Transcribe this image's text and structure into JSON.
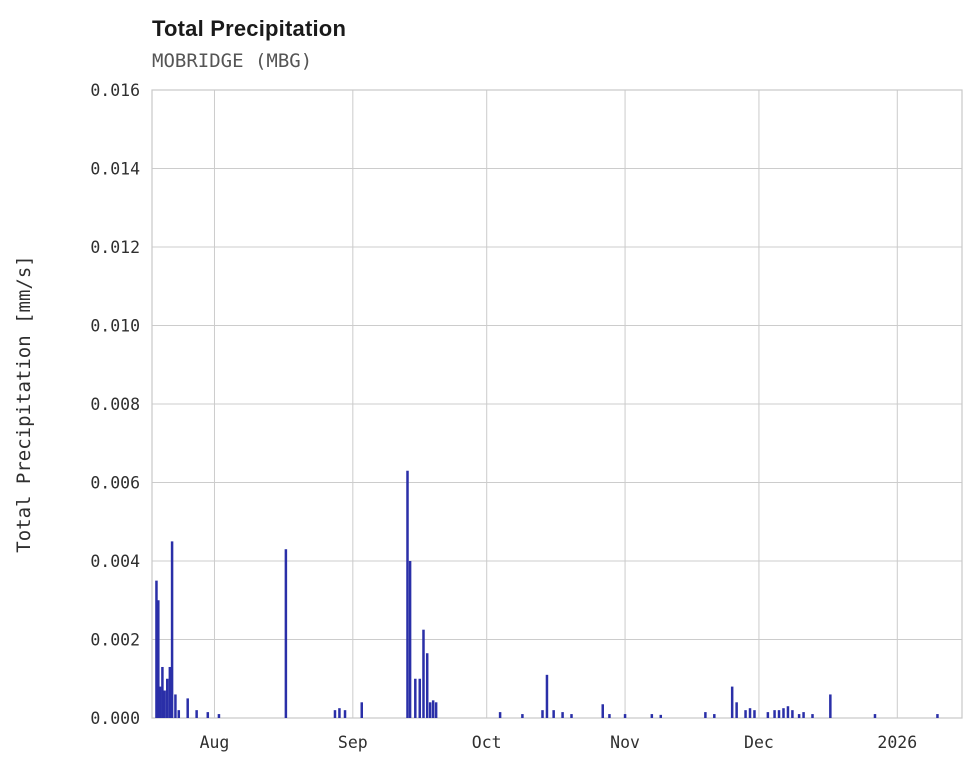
{
  "chart_data": {
    "type": "bar",
    "title": "Total Precipitation",
    "subtitle": "MOBRIDGE (MBG)",
    "ylabel": "Total Precipitation [mm/s]",
    "xlabel": "",
    "ylim": [
      0,
      0.016
    ],
    "ytick_step": 0.002,
    "ytick_labels": [
      "0.000",
      "0.002",
      "0.004",
      "0.006",
      "0.008",
      "0.010",
      "0.012",
      "0.014",
      "0.016"
    ],
    "x_start": "2025-07-18T00:00",
    "x_end": "2026-01-15T12:00",
    "xticks": [
      {
        "date": "2025-08-01T00:00",
        "label": "Aug"
      },
      {
        "date": "2025-09-01T00:00",
        "label": "Sep"
      },
      {
        "date": "2025-10-01T00:00",
        "label": "Oct"
      },
      {
        "date": "2025-11-01T00:00",
        "label": "Nov"
      },
      {
        "date": "2025-12-01T00:00",
        "label": "Dec"
      },
      {
        "date": "2026-01-01T00:00",
        "label": "2026"
      }
    ],
    "grid": true,
    "legend": false,
    "bar_color": "#2a2fa8",
    "grid_color": "#cccccc",
    "spine_color": "#c8c8c8",
    "tick_text_color": "#2f2f2f",
    "points": [
      {
        "date": "2025-07-19T00:00",
        "value": 0.0035
      },
      {
        "date": "2025-07-19T10:00",
        "value": 0.003
      },
      {
        "date": "2025-07-19T20:00",
        "value": 0.0008
      },
      {
        "date": "2025-07-20T08:00",
        "value": 0.0013
      },
      {
        "date": "2025-07-20T20:00",
        "value": 0.0007
      },
      {
        "date": "2025-07-21T10:00",
        "value": 0.001
      },
      {
        "date": "2025-07-22T00:00",
        "value": 0.0013
      },
      {
        "date": "2025-07-22T12:00",
        "value": 0.0045
      },
      {
        "date": "2025-07-23T06:00",
        "value": 0.0006
      },
      {
        "date": "2025-07-24T00:00",
        "value": 0.0002
      },
      {
        "date": "2025-07-26T00:00",
        "value": 0.0005
      },
      {
        "date": "2025-07-28T00:00",
        "value": 0.0002
      },
      {
        "date": "2025-07-30T12:00",
        "value": 0.00015
      },
      {
        "date": "2025-08-02T00:00",
        "value": 0.0001
      },
      {
        "date": "2025-08-17T00:00",
        "value": 0.0043
      },
      {
        "date": "2025-08-28T00:00",
        "value": 0.0002
      },
      {
        "date": "2025-08-29T00:00",
        "value": 0.00025
      },
      {
        "date": "2025-08-30T06:00",
        "value": 0.0002
      },
      {
        "date": "2025-09-03T00:00",
        "value": 0.0004
      },
      {
        "date": "2025-09-13T06:00",
        "value": 0.0063
      },
      {
        "date": "2025-09-13T20:00",
        "value": 0.004
      },
      {
        "date": "2025-09-15T00:00",
        "value": 0.001
      },
      {
        "date": "2025-09-16T00:00",
        "value": 0.001
      },
      {
        "date": "2025-09-16T20:00",
        "value": 0.00225
      },
      {
        "date": "2025-09-17T16:00",
        "value": 0.00165
      },
      {
        "date": "2025-09-18T08:00",
        "value": 0.0004
      },
      {
        "date": "2025-09-19T00:00",
        "value": 0.00045
      },
      {
        "date": "2025-09-19T16:00",
        "value": 0.0004
      },
      {
        "date": "2025-10-04T00:00",
        "value": 0.00015
      },
      {
        "date": "2025-10-09T00:00",
        "value": 0.0001
      },
      {
        "date": "2025-10-13T12:00",
        "value": 0.0002
      },
      {
        "date": "2025-10-14T12:00",
        "value": 0.0011
      },
      {
        "date": "2025-10-16T00:00",
        "value": 0.0002
      },
      {
        "date": "2025-10-18T00:00",
        "value": 0.00015
      },
      {
        "date": "2025-10-20T00:00",
        "value": 0.0001
      },
      {
        "date": "2025-10-27T00:00",
        "value": 0.00035
      },
      {
        "date": "2025-10-28T12:00",
        "value": 0.0001
      },
      {
        "date": "2025-11-01T00:00",
        "value": 0.0001
      },
      {
        "date": "2025-11-07T00:00",
        "value": 0.0001
      },
      {
        "date": "2025-11-09T00:00",
        "value": 8e-05
      },
      {
        "date": "2025-11-19T00:00",
        "value": 0.00015
      },
      {
        "date": "2025-11-21T00:00",
        "value": 0.0001
      },
      {
        "date": "2025-11-25T00:00",
        "value": 0.0008
      },
      {
        "date": "2025-11-26T00:00",
        "value": 0.0004
      },
      {
        "date": "2025-11-28T00:00",
        "value": 0.0002
      },
      {
        "date": "2025-11-29T00:00",
        "value": 0.00025
      },
      {
        "date": "2025-11-30T00:00",
        "value": 0.0002
      },
      {
        "date": "2025-12-03T00:00",
        "value": 0.00015
      },
      {
        "date": "2025-12-04T12:00",
        "value": 0.0002
      },
      {
        "date": "2025-12-05T12:00",
        "value": 0.0002
      },
      {
        "date": "2025-12-06T12:00",
        "value": 0.00025
      },
      {
        "date": "2025-12-07T12:00",
        "value": 0.0003
      },
      {
        "date": "2025-12-08T12:00",
        "value": 0.0002
      },
      {
        "date": "2025-12-10T00:00",
        "value": 0.0001
      },
      {
        "date": "2025-12-11T00:00",
        "value": 0.00015
      },
      {
        "date": "2025-12-13T00:00",
        "value": 0.0001
      },
      {
        "date": "2025-12-17T00:00",
        "value": 0.0006
      },
      {
        "date": "2025-12-27T00:00",
        "value": 0.0001
      },
      {
        "date": "2026-01-10T00:00",
        "value": 0.0001
      }
    ]
  }
}
